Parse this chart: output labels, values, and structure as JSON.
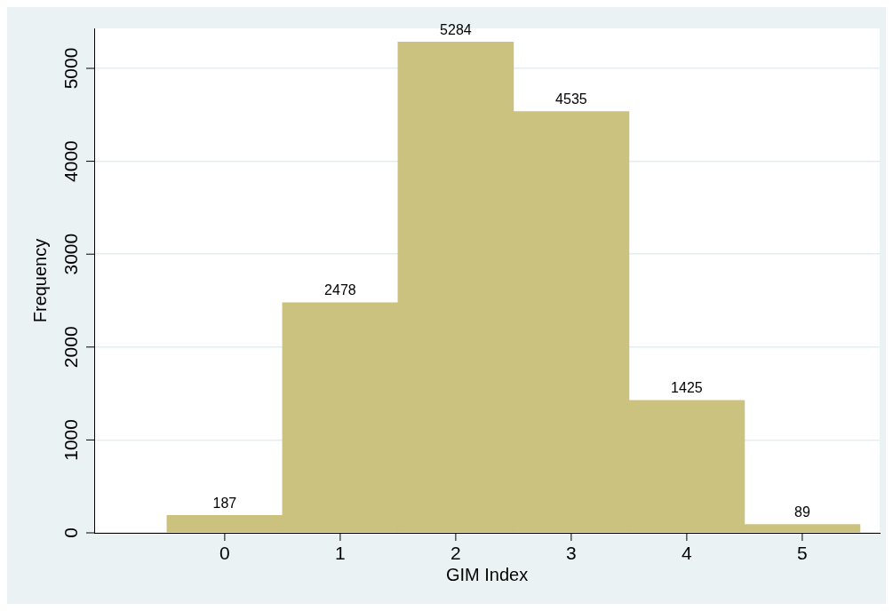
{
  "chart_data": {
    "type": "histogram",
    "xlabel": "GIM Index",
    "ylabel": "Frequency",
    "bins": [
      -0.5,
      0.5,
      1.5,
      2.5,
      3.5,
      4.5,
      5.5
    ],
    "values": [
      187,
      2478,
      5284,
      4535,
      1425,
      89
    ],
    "color": "#cbc27f",
    "xlim": [
      -1.13,
      5.67
    ],
    "xticks": [
      0,
      1,
      2,
      3,
      4,
      5
    ],
    "ylim": [
      0,
      5430
    ],
    "yticks": [
      0,
      1000,
      2000,
      3000,
      4000,
      5000
    ],
    "grid": "y",
    "data_labels": true,
    "legend": false
  }
}
